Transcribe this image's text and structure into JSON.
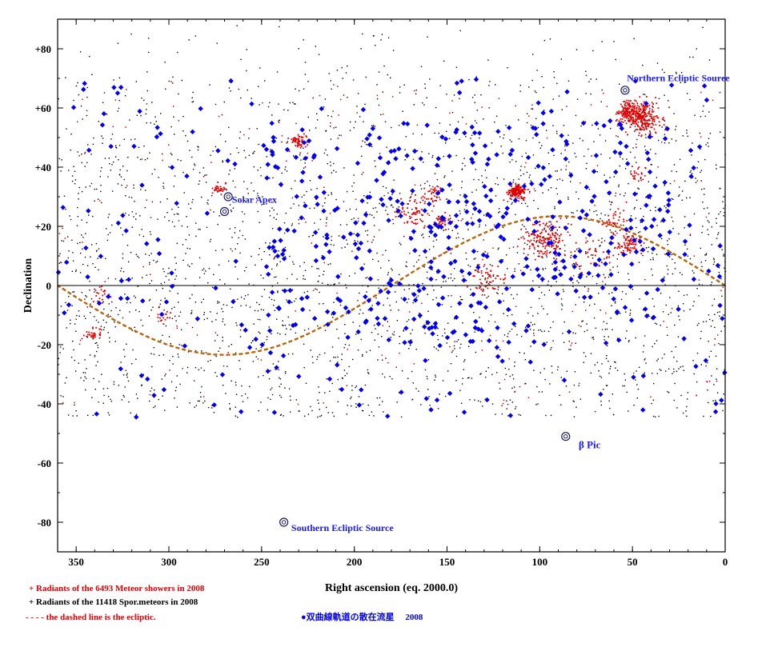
{
  "chart_data": {
    "type": "scatter",
    "xlabel": "Right ascension (eq. 2000.0)",
    "ylabel": "Declination",
    "xlim": [
      360,
      0
    ],
    "ylim": [
      -90,
      90
    ],
    "x_ticks": [
      350,
      300,
      250,
      200,
      150,
      100,
      50,
      0
    ],
    "x_tick_labels": [
      "350",
      "300",
      "250",
      "200",
      "150",
      "100",
      "50",
      "0"
    ],
    "y_ticks": [
      80,
      60,
      40,
      20,
      0,
      -20,
      -40,
      -60,
      -80
    ],
    "y_tick_labels": [
      "+80",
      "+60",
      "+40",
      "+20",
      "0",
      "-20",
      "-40",
      "-60",
      "-80"
    ],
    "grid": false,
    "equator_line": 0,
    "colors": {
      "showers": "#e00000",
      "sporadic": "#000000",
      "hyperbolic": "#0000ee",
      "ecliptic": "#b8660b",
      "annotations": "#1a1aff"
    },
    "legend": {
      "showers": "+  Radiants of the 6493 Meteor showers in 2008",
      "sporadic": "+    Radiants of the 11418 Spor.meteors in 2008",
      "ecliptic": "- - - - the dashed line is the ecliptic.",
      "hyperbolic": "●双曲線軌道の散在流星　 2008"
    },
    "ecliptic": {
      "style": "dashed",
      "points": [
        {
          "x": 0,
          "y": 0
        },
        {
          "x": 15,
          "y": 5.9
        },
        {
          "x": 30,
          "y": 11.5
        },
        {
          "x": 45,
          "y": 16.3
        },
        {
          "x": 60,
          "y": 20.1
        },
        {
          "x": 75,
          "y": 22.6
        },
        {
          "x": 90,
          "y": 23.4
        },
        {
          "x": 105,
          "y": 22.6
        },
        {
          "x": 120,
          "y": 20.1
        },
        {
          "x": 135,
          "y": 16.3
        },
        {
          "x": 150,
          "y": 11.5
        },
        {
          "x": 165,
          "y": 5.9
        },
        {
          "x": 180,
          "y": 0
        },
        {
          "x": 195,
          "y": -5.9
        },
        {
          "x": 210,
          "y": -11.5
        },
        {
          "x": 225,
          "y": -16.3
        },
        {
          "x": 240,
          "y": -20.1
        },
        {
          "x": 255,
          "y": -22.6
        },
        {
          "x": 270,
          "y": -23.4
        },
        {
          "x": 285,
          "y": -22.6
        },
        {
          "x": 300,
          "y": -20.1
        },
        {
          "x": 315,
          "y": -16.3
        },
        {
          "x": 330,
          "y": -11.5
        },
        {
          "x": 345,
          "y": -5.9
        },
        {
          "x": 360,
          "y": 0
        }
      ]
    },
    "shower_clusters": [
      {
        "x": 45,
        "y": 57,
        "spread": 6,
        "n": 260
      },
      {
        "x": 52,
        "y": 59,
        "spread": 4,
        "n": 120
      },
      {
        "x": 113,
        "y": 32,
        "spread": 3,
        "n": 160
      },
      {
        "x": 97,
        "y": 16,
        "spread": 7,
        "n": 170
      },
      {
        "x": 52,
        "y": 14,
        "spread": 4,
        "n": 80
      },
      {
        "x": 60,
        "y": 22,
        "spread": 4,
        "n": 40
      },
      {
        "x": 230,
        "y": 49,
        "spread": 3,
        "n": 60
      },
      {
        "x": 157,
        "y": 31,
        "spread": 4,
        "n": 40
      },
      {
        "x": 153,
        "y": 22,
        "spread": 3,
        "n": 40
      },
      {
        "x": 128,
        "y": 2,
        "spread": 6,
        "n": 60
      },
      {
        "x": 273,
        "y": 33,
        "spread": 2,
        "n": 30
      },
      {
        "x": 341,
        "y": -16,
        "spread": 3,
        "n": 35
      },
      {
        "x": 337,
        "y": -3,
        "spread": 3,
        "n": 20
      },
      {
        "x": 304,
        "y": -10,
        "spread": 3,
        "n": 15
      },
      {
        "x": 170,
        "y": 25,
        "spread": 6,
        "n": 60
      },
      {
        "x": 48,
        "y": 38,
        "spread": 3,
        "n": 20
      },
      {
        "x": 70,
        "y": 10,
        "spread": 8,
        "n": 40
      }
    ],
    "sporadic_count_drawn": 2600,
    "hyperbolic_count_drawn": 560,
    "special_points": [
      {
        "name": "Northern Ecliptic Source",
        "x": 54,
        "y": 66
      },
      {
        "name": "Solar Apex",
        "x": 270,
        "y": 25
      },
      {
        "name": "Solar Apex",
        "x": 268,
        "y": 30
      },
      {
        "name": "β Pic",
        "x": 86,
        "y": -51
      },
      {
        "name": "Southern Ecliptic Source",
        "x": 238,
        "y": -80
      }
    ],
    "annotations": [
      {
        "text": "Northern Ecliptic Source",
        "x": 53,
        "y": 69
      },
      {
        "text": "Solar Apex",
        "x": 266,
        "y": 28
      },
      {
        "text": "β Pic",
        "x": 79,
        "y": -55
      },
      {
        "text": "Southern Ecliptic Source",
        "x": 234,
        "y": -83
      }
    ]
  }
}
